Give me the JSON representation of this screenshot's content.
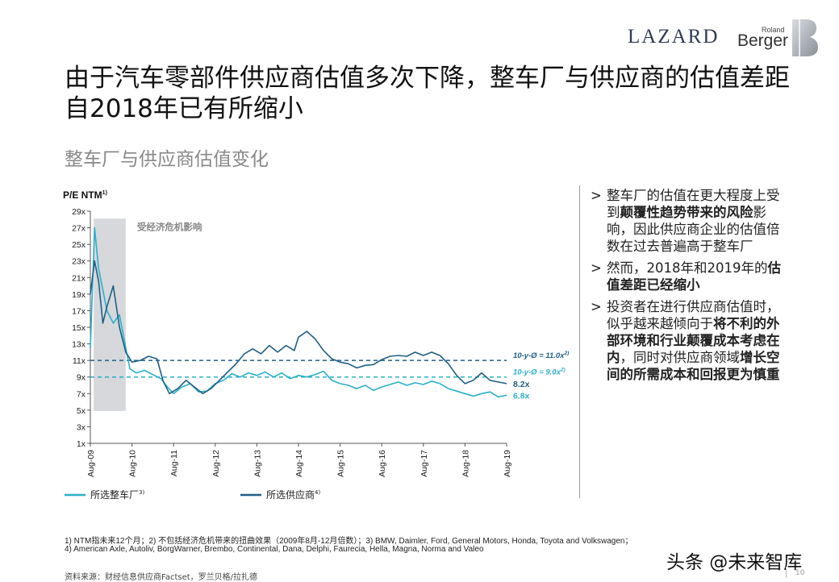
{
  "logos": {
    "lazard": "LAZARD",
    "rb_small": "Roland",
    "rb_big": "Berger"
  },
  "title": "由于汽车零部件供应商估值多次下降，整车厂与供应商的估值差距自2018年已有所缩小",
  "subtitle": "整车厂与供应商估值变化",
  "chart_data": {
    "type": "line",
    "ylabel": "P/E NTM",
    "ylabel_sup": "1)",
    "ylim": [
      1,
      29
    ],
    "yticks": [
      "29x",
      "27x",
      "25x",
      "23x",
      "21x",
      "19x",
      "17x",
      "15x",
      "13x",
      "11x",
      "9x",
      "7x",
      "5x",
      "3x",
      "1x"
    ],
    "xticks": [
      "Aug-09",
      "Aug-10",
      "Aug-11",
      "Aug-12",
      "Aug-13",
      "Aug-14",
      "Aug-15",
      "Aug-16",
      "Aug-17",
      "Aug-18",
      "Aug-19"
    ],
    "xlim": [
      2009.6,
      2019.6
    ],
    "shaded_label": "受经济危机影响",
    "shaded_range": [
      2009.68,
      2010.45
    ],
    "series": [
      {
        "name": "所选整车厂",
        "sup": "3)",
        "color": "#2ab0c9",
        "avg_label": "10-y-Ø = 9.0x",
        "avg_sup": "2)",
        "avg_value": 9.0,
        "end_label": "6.8x",
        "points": [
          [
            2009.6,
            12.5
          ],
          [
            2009.7,
            27.0
          ],
          [
            2009.8,
            22.0
          ],
          [
            2009.9,
            19.5
          ],
          [
            2010.0,
            17.0
          ],
          [
            2010.15,
            15.5
          ],
          [
            2010.3,
            16.5
          ],
          [
            2010.45,
            12.5
          ],
          [
            2010.55,
            10.0
          ],
          [
            2010.7,
            9.5
          ],
          [
            2010.9,
            9.8
          ],
          [
            2011.1,
            9.3
          ],
          [
            2011.3,
            8.8
          ],
          [
            2011.45,
            7.8
          ],
          [
            2011.6,
            7.0
          ],
          [
            2011.8,
            7.8
          ],
          [
            2012.0,
            8.2
          ],
          [
            2012.2,
            7.2
          ],
          [
            2012.4,
            7.3
          ],
          [
            2012.6,
            8.2
          ],
          [
            2012.8,
            8.6
          ],
          [
            2013.0,
            9.4
          ],
          [
            2013.2,
            9.0
          ],
          [
            2013.4,
            9.5
          ],
          [
            2013.6,
            9.2
          ],
          [
            2013.8,
            9.6
          ],
          [
            2014.0,
            9.0
          ],
          [
            2014.2,
            9.5
          ],
          [
            2014.4,
            8.8
          ],
          [
            2014.6,
            9.2
          ],
          [
            2014.8,
            9.0
          ],
          [
            2015.0,
            9.3
          ],
          [
            2015.2,
            9.7
          ],
          [
            2015.4,
            8.6
          ],
          [
            2015.6,
            8.2
          ],
          [
            2015.8,
            8.0
          ],
          [
            2016.0,
            7.6
          ],
          [
            2016.2,
            8.0
          ],
          [
            2016.4,
            7.4
          ],
          [
            2016.6,
            7.8
          ],
          [
            2016.8,
            8.1
          ],
          [
            2017.0,
            8.4
          ],
          [
            2017.2,
            8.0
          ],
          [
            2017.4,
            8.3
          ],
          [
            2017.6,
            8.1
          ],
          [
            2017.8,
            8.5
          ],
          [
            2018.0,
            8.2
          ],
          [
            2018.2,
            7.6
          ],
          [
            2018.4,
            7.3
          ],
          [
            2018.6,
            7.0
          ],
          [
            2018.8,
            6.7
          ],
          [
            2019.0,
            7.0
          ],
          [
            2019.2,
            7.2
          ],
          [
            2019.4,
            6.6
          ],
          [
            2019.6,
            6.8
          ]
        ]
      },
      {
        "name": "所选供应商",
        "sup": "4)",
        "color": "#1f5f85",
        "avg_label": "10-y-Ø = 11.0x",
        "avg_sup": "2)",
        "avg_value": 11.0,
        "end_label": "8.2x",
        "points": [
          [
            2009.6,
            19.0
          ],
          [
            2009.7,
            23.0
          ],
          [
            2009.8,
            20.5
          ],
          [
            2009.9,
            15.5
          ],
          [
            2010.0,
            17.5
          ],
          [
            2010.15,
            20.0
          ],
          [
            2010.3,
            15.0
          ],
          [
            2010.45,
            12.0
          ],
          [
            2010.6,
            10.8
          ],
          [
            2010.8,
            11.0
          ],
          [
            2011.0,
            11.5
          ],
          [
            2011.2,
            11.2
          ],
          [
            2011.35,
            8.5
          ],
          [
            2011.5,
            7.0
          ],
          [
            2011.7,
            7.6
          ],
          [
            2011.9,
            8.6
          ],
          [
            2012.1,
            7.8
          ],
          [
            2012.3,
            7.0
          ],
          [
            2012.5,
            7.6
          ],
          [
            2012.7,
            8.6
          ],
          [
            2012.9,
            9.6
          ],
          [
            2013.1,
            10.6
          ],
          [
            2013.3,
            11.8
          ],
          [
            2013.5,
            12.4
          ],
          [
            2013.7,
            11.8
          ],
          [
            2013.9,
            12.8
          ],
          [
            2014.1,
            12.0
          ],
          [
            2014.3,
            12.8
          ],
          [
            2014.5,
            12.2
          ],
          [
            2014.6,
            13.8
          ],
          [
            2014.8,
            14.5
          ],
          [
            2015.0,
            13.6
          ],
          [
            2015.2,
            12.2
          ],
          [
            2015.4,
            11.2
          ],
          [
            2015.6,
            10.8
          ],
          [
            2015.8,
            10.6
          ],
          [
            2016.0,
            10.1
          ],
          [
            2016.2,
            10.4
          ],
          [
            2016.4,
            10.5
          ],
          [
            2016.6,
            11.1
          ],
          [
            2016.8,
            11.5
          ],
          [
            2017.0,
            11.6
          ],
          [
            2017.2,
            11.5
          ],
          [
            2017.4,
            12.0
          ],
          [
            2017.6,
            11.6
          ],
          [
            2017.8,
            12.0
          ],
          [
            2018.0,
            11.6
          ],
          [
            2018.2,
            10.6
          ],
          [
            2018.4,
            9.2
          ],
          [
            2018.6,
            8.2
          ],
          [
            2018.8,
            8.6
          ],
          [
            2019.0,
            9.5
          ],
          [
            2019.2,
            8.6
          ],
          [
            2019.4,
            8.4
          ],
          [
            2019.6,
            8.2
          ]
        ]
      }
    ]
  },
  "bullets": [
    [
      {
        "t": "整车厂的估值在更大程度上受到",
        "b": false
      },
      {
        "t": "颠覆性趋势带来的风险",
        "b": true
      },
      {
        "t": "影响，因此供应商企业的估值倍数在过去普遍高于整车厂",
        "b": false
      }
    ],
    [
      {
        "t": "然而，2018年和2019年的",
        "b": false
      },
      {
        "t": "估值差距已经缩小",
        "b": true
      }
    ],
    [
      {
        "t": "投资者在进行供应商估值时，似乎越来越倾向于",
        "b": false
      },
      {
        "t": "将不利的外部环境和行业颠覆成本考虑在内",
        "b": true
      },
      {
        "t": "，同时对供应商领域",
        "b": false
      },
      {
        "t": "增长空间的所需成本和回报更为慎重",
        "b": true
      }
    ]
  ],
  "footnote1": "1) NTM指未来12个月；2) 不包括经济危机带来的扭曲效果（2009年8月-12月倍数）；3) BMW, Daimler, Ford, General Motors, Honda, Toyota and Volkswagen；",
  "footnote2": "4) American Axle, Autoliv, BorgWarner, Brembo, Continental, Dana, Delphi, Faurecia, Hella, Magna, Norma and Valeo",
  "source": "资料来源：财经信息供应商Factset，罗兰贝格/拉扎德",
  "watermark": "头条 @未来智库",
  "page_number": "10"
}
